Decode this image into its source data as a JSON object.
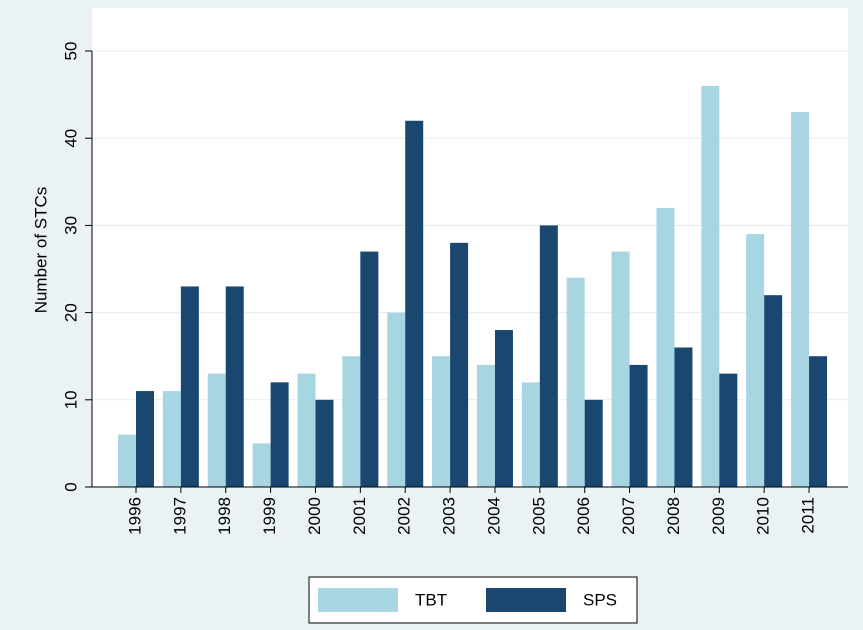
{
  "chart_data": {
    "type": "bar",
    "y_label": "Number of STCs",
    "categories": [
      "1996",
      "1997",
      "1998",
      "1999",
      "2000",
      "2001",
      "2002",
      "2003",
      "2004",
      "2005",
      "2006",
      "2007",
      "2008",
      "2009",
      "2010",
      "2011"
    ],
    "series": [
      {
        "name": "TBT",
        "color": "#a8d5e2",
        "values": [
          6,
          11,
          13,
          5,
          13,
          15,
          20,
          15,
          14,
          12,
          24,
          27,
          32,
          46,
          29,
          43
        ]
      },
      {
        "name": "SPS",
        "color": "#1a476f",
        "values": [
          11,
          23,
          23,
          12,
          10,
          27,
          42,
          28,
          18,
          30,
          10,
          14,
          16,
          13,
          22,
          15
        ]
      }
    ],
    "ylim": [
      0,
      50
    ],
    "yticks": [
      0,
      10,
      20,
      30,
      40,
      50
    ],
    "grid": true,
    "legend": "bottom"
  }
}
